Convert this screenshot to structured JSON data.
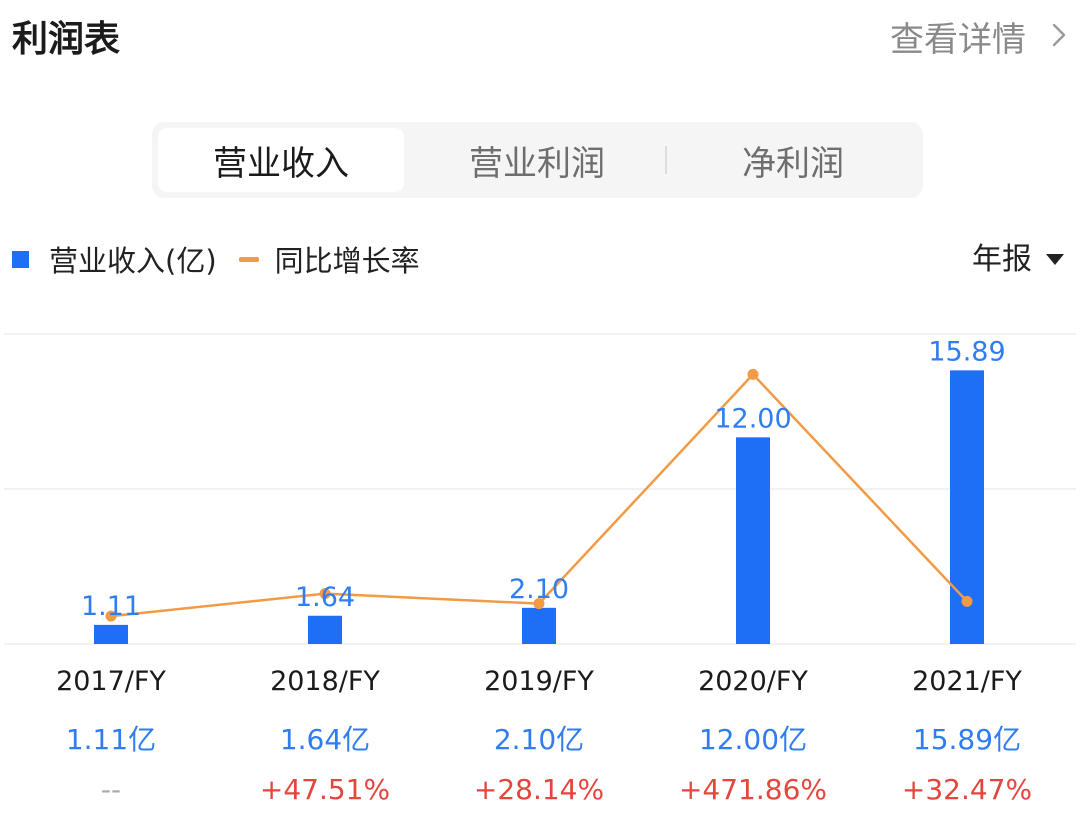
{
  "header": {
    "title": "利润表",
    "detail_label": "查看详情"
  },
  "tabs": [
    {
      "label": "营业收入",
      "active": true
    },
    {
      "label": "营业利润",
      "active": false
    },
    {
      "label": "净利润",
      "active": false
    }
  ],
  "legend": {
    "bar_label": "营业收入(亿)",
    "line_label": "同比增长率"
  },
  "period_selector": {
    "label": "年报"
  },
  "colors": {
    "bar": "#1f6ef6",
    "line": "#f29a45",
    "value_text": "#2f7df0",
    "growth_text": "#e5463c"
  },
  "chart_data": {
    "type": "bar",
    "categories": [
      "2017/FY",
      "2018/FY",
      "2019/FY",
      "2020/FY",
      "2021/FY"
    ],
    "series": [
      {
        "values": [
          1.11,
          1.64,
          2.1,
          12.0,
          15.89
        ],
        "data_labels": [
          "1.11",
          "1.64",
          "2.10",
          "12.00",
          "15.89"
        ]
      },
      {
        "values": [
          null,
          47.51,
          28.14,
          471.86,
          32.47
        ]
      }
    ],
    "ylim": [
      0,
      18
    ],
    "growth_ylim": [
      -50,
      550
    ],
    "grid": true
  },
  "table": {
    "values": [
      "1.11亿",
      "1.64亿",
      "2.10亿",
      "12.00亿",
      "15.89亿"
    ],
    "growth": [
      "--",
      "+47.51%",
      "+28.14%",
      "+471.86%",
      "+32.47%"
    ]
  }
}
